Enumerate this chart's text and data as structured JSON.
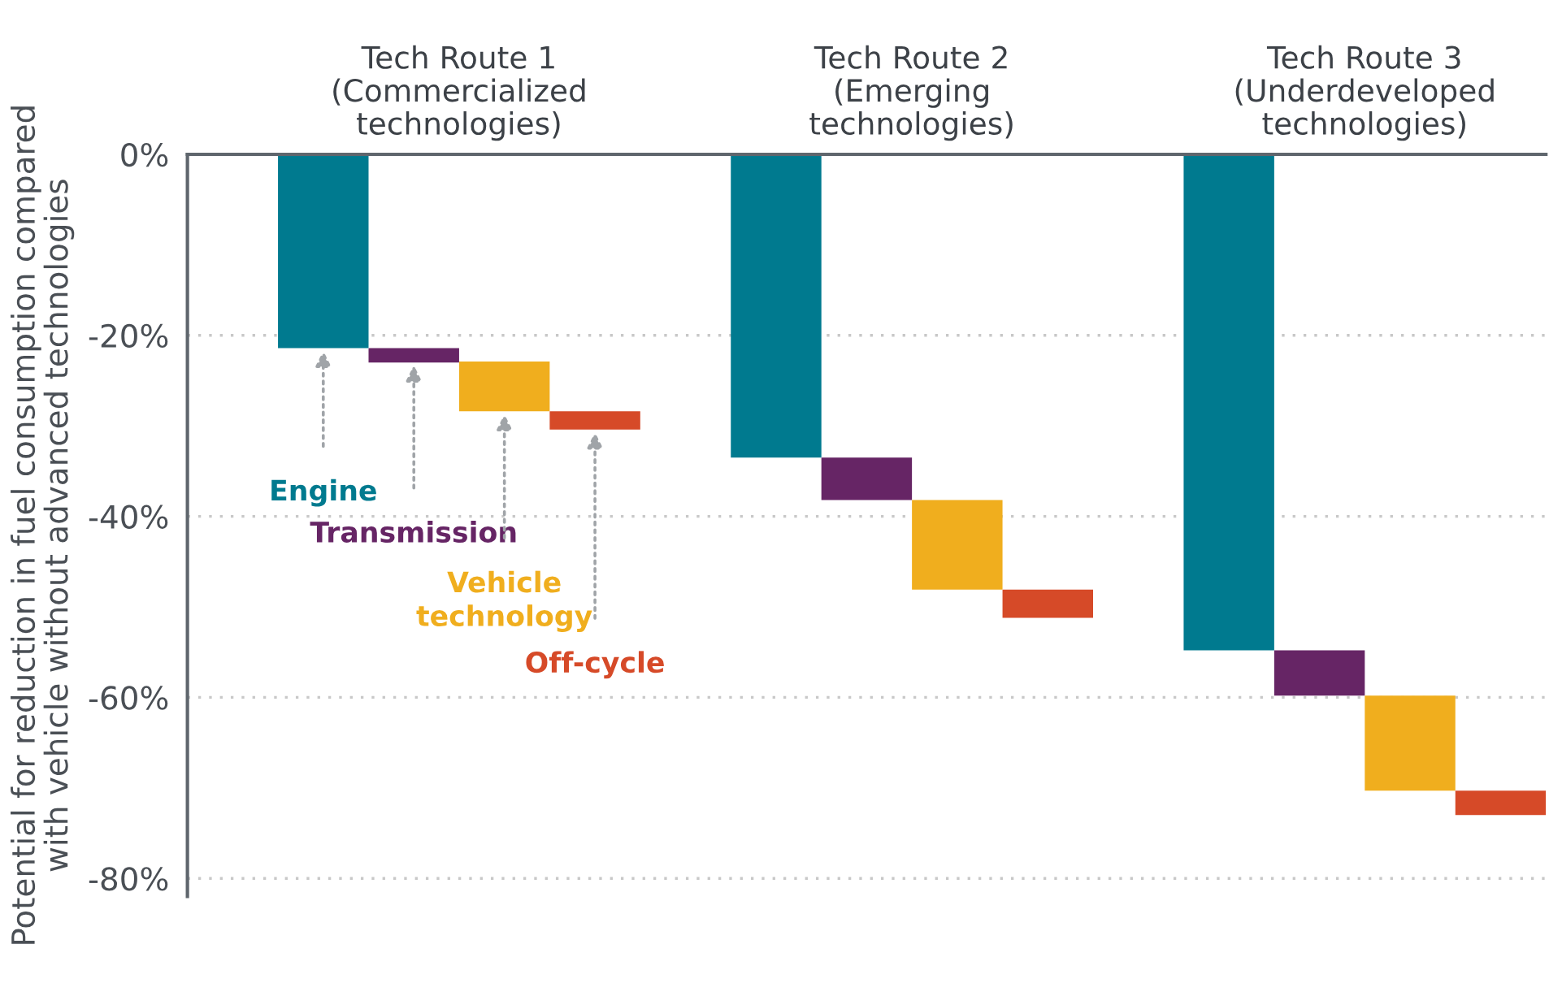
{
  "chart_data": {
    "type": "bar",
    "ylabel": "Potential for reduction in fuel consumption compared\nwith vehicle without advanced technologies",
    "categories": [
      null,
      null,
      null,
      null,
      null,
      null,
      null,
      null,
      null,
      null,
      null,
      null,
      null,
      null,
      null
    ],
    "series": [
      {
        "name": "Engine",
        "color": "#007a8f",
        "values": [
          null,
          -21.4,
          null,
          null,
          null,
          null,
          -33.5,
          null,
          null,
          null,
          null,
          -54.8,
          null,
          null,
          null
        ],
        "base": [
          null,
          0,
          null,
          null,
          null,
          null,
          0,
          null,
          null,
          null,
          null,
          0,
          null,
          null,
          null
        ]
      },
      {
        "name": "Transmission",
        "color": "#662565",
        "values": [
          null,
          null,
          -1.6,
          null,
          null,
          null,
          null,
          -4.7,
          null,
          null,
          null,
          null,
          -5.0,
          null,
          null
        ],
        "base": [
          null,
          null,
          -21.4,
          null,
          null,
          null,
          null,
          -33.5,
          null,
          null,
          null,
          null,
          -54.8,
          null,
          null
        ]
      },
      {
        "name": "Vehicle\ntechnology",
        "color": "#f0ae1e",
        "values": [
          null,
          null,
          null,
          -5.5,
          null,
          null,
          null,
          null,
          -9.9,
          null,
          null,
          null,
          null,
          -10.5,
          null
        ],
        "base": [
          null,
          null,
          null,
          -22.9,
          null,
          null,
          null,
          null,
          -38.2,
          null,
          null,
          null,
          null,
          -59.8,
          null
        ]
      },
      {
        "name": "Off-cycle",
        "color": "#d64a28",
        "values": [
          null,
          null,
          null,
          null,
          -2.0,
          null,
          null,
          null,
          null,
          -3.1,
          null,
          null,
          null,
          null,
          -2.7
        ],
        "base": [
          null,
          null,
          null,
          null,
          -28.4,
          null,
          null,
          null,
          null,
          -48.1,
          null,
          null,
          null,
          null,
          -70.3
        ]
      }
    ],
    "annotations": [
      "Tech Route 1\n(Commercialized\ntechnologies)",
      "Tech Route 2\n(Emerging\ntechnologies)",
      "Tech Route 3\n(Underdeveloped\ntechnologies)"
    ],
    "ylim": [
      -82,
      0
    ],
    "yticks": [
      {
        "value": 0,
        "label": "0%"
      },
      {
        "value": -20,
        "label": "-20%"
      },
      {
        "value": -40,
        "label": "-40%"
      },
      {
        "value": -60,
        "label": "-60%"
      },
      {
        "value": -80,
        "label": "-80%"
      }
    ],
    "grid": "y",
    "tick_labels": "y",
    "legend": false
  }
}
